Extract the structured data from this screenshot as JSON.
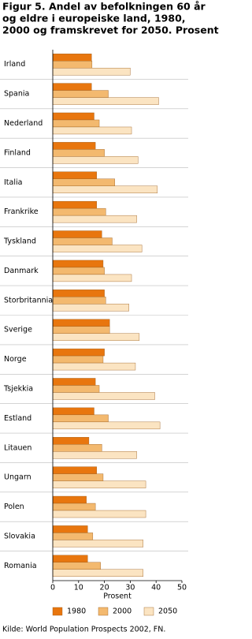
{
  "chart_data": {
    "type": "barh",
    "title": [
      "Figur 5. Andel av befolkningen 60 år",
      "og eldre i europeiske land, 1980,",
      "2000 og framskrevet for 2050. Prosent"
    ],
    "xlabel": "Prosent",
    "source": "Kilde: World Population Prospects 2002, FN.",
    "categories": [
      "Irland",
      "Spania",
      "Nederland",
      "Finland",
      "Italia",
      "Frankrike",
      "Tyskland",
      "Danmark",
      "Storbritannia",
      "Sverige",
      "Norge",
      "Tsjekkia",
      "Estland",
      "Litauen",
      "Ungarn",
      "Polen",
      "Slovakia",
      "Romania"
    ],
    "series": [
      {
        "name": "1980",
        "color": "#e8760e",
        "values": [
          15,
          15,
          16,
          16.5,
          17,
          17,
          19,
          19.5,
          20,
          22,
          20,
          16.5,
          16,
          14,
          17,
          13,
          13.5,
          13.5
        ]
      },
      {
        "name": "2000",
        "color": "#f3b96f",
        "values": [
          15.2,
          21.5,
          18,
          20,
          24,
          20.5,
          23,
          20,
          20.5,
          22,
          19.5,
          18,
          21.5,
          19,
          19.5,
          16.5,
          15.5,
          18.5
        ]
      },
      {
        "name": "2050",
        "color": "#fbe4c2",
        "values": [
          30,
          41,
          30.5,
          33,
          40.5,
          32.5,
          34.5,
          30.5,
          29.5,
          33.5,
          32,
          39.5,
          41.5,
          32.5,
          36,
          36,
          35,
          35
        ]
      }
    ],
    "xlim": [
      0,
      50
    ],
    "xticks": [
      0,
      10,
      20,
      30,
      40,
      50
    ],
    "legend": "bottom"
  }
}
